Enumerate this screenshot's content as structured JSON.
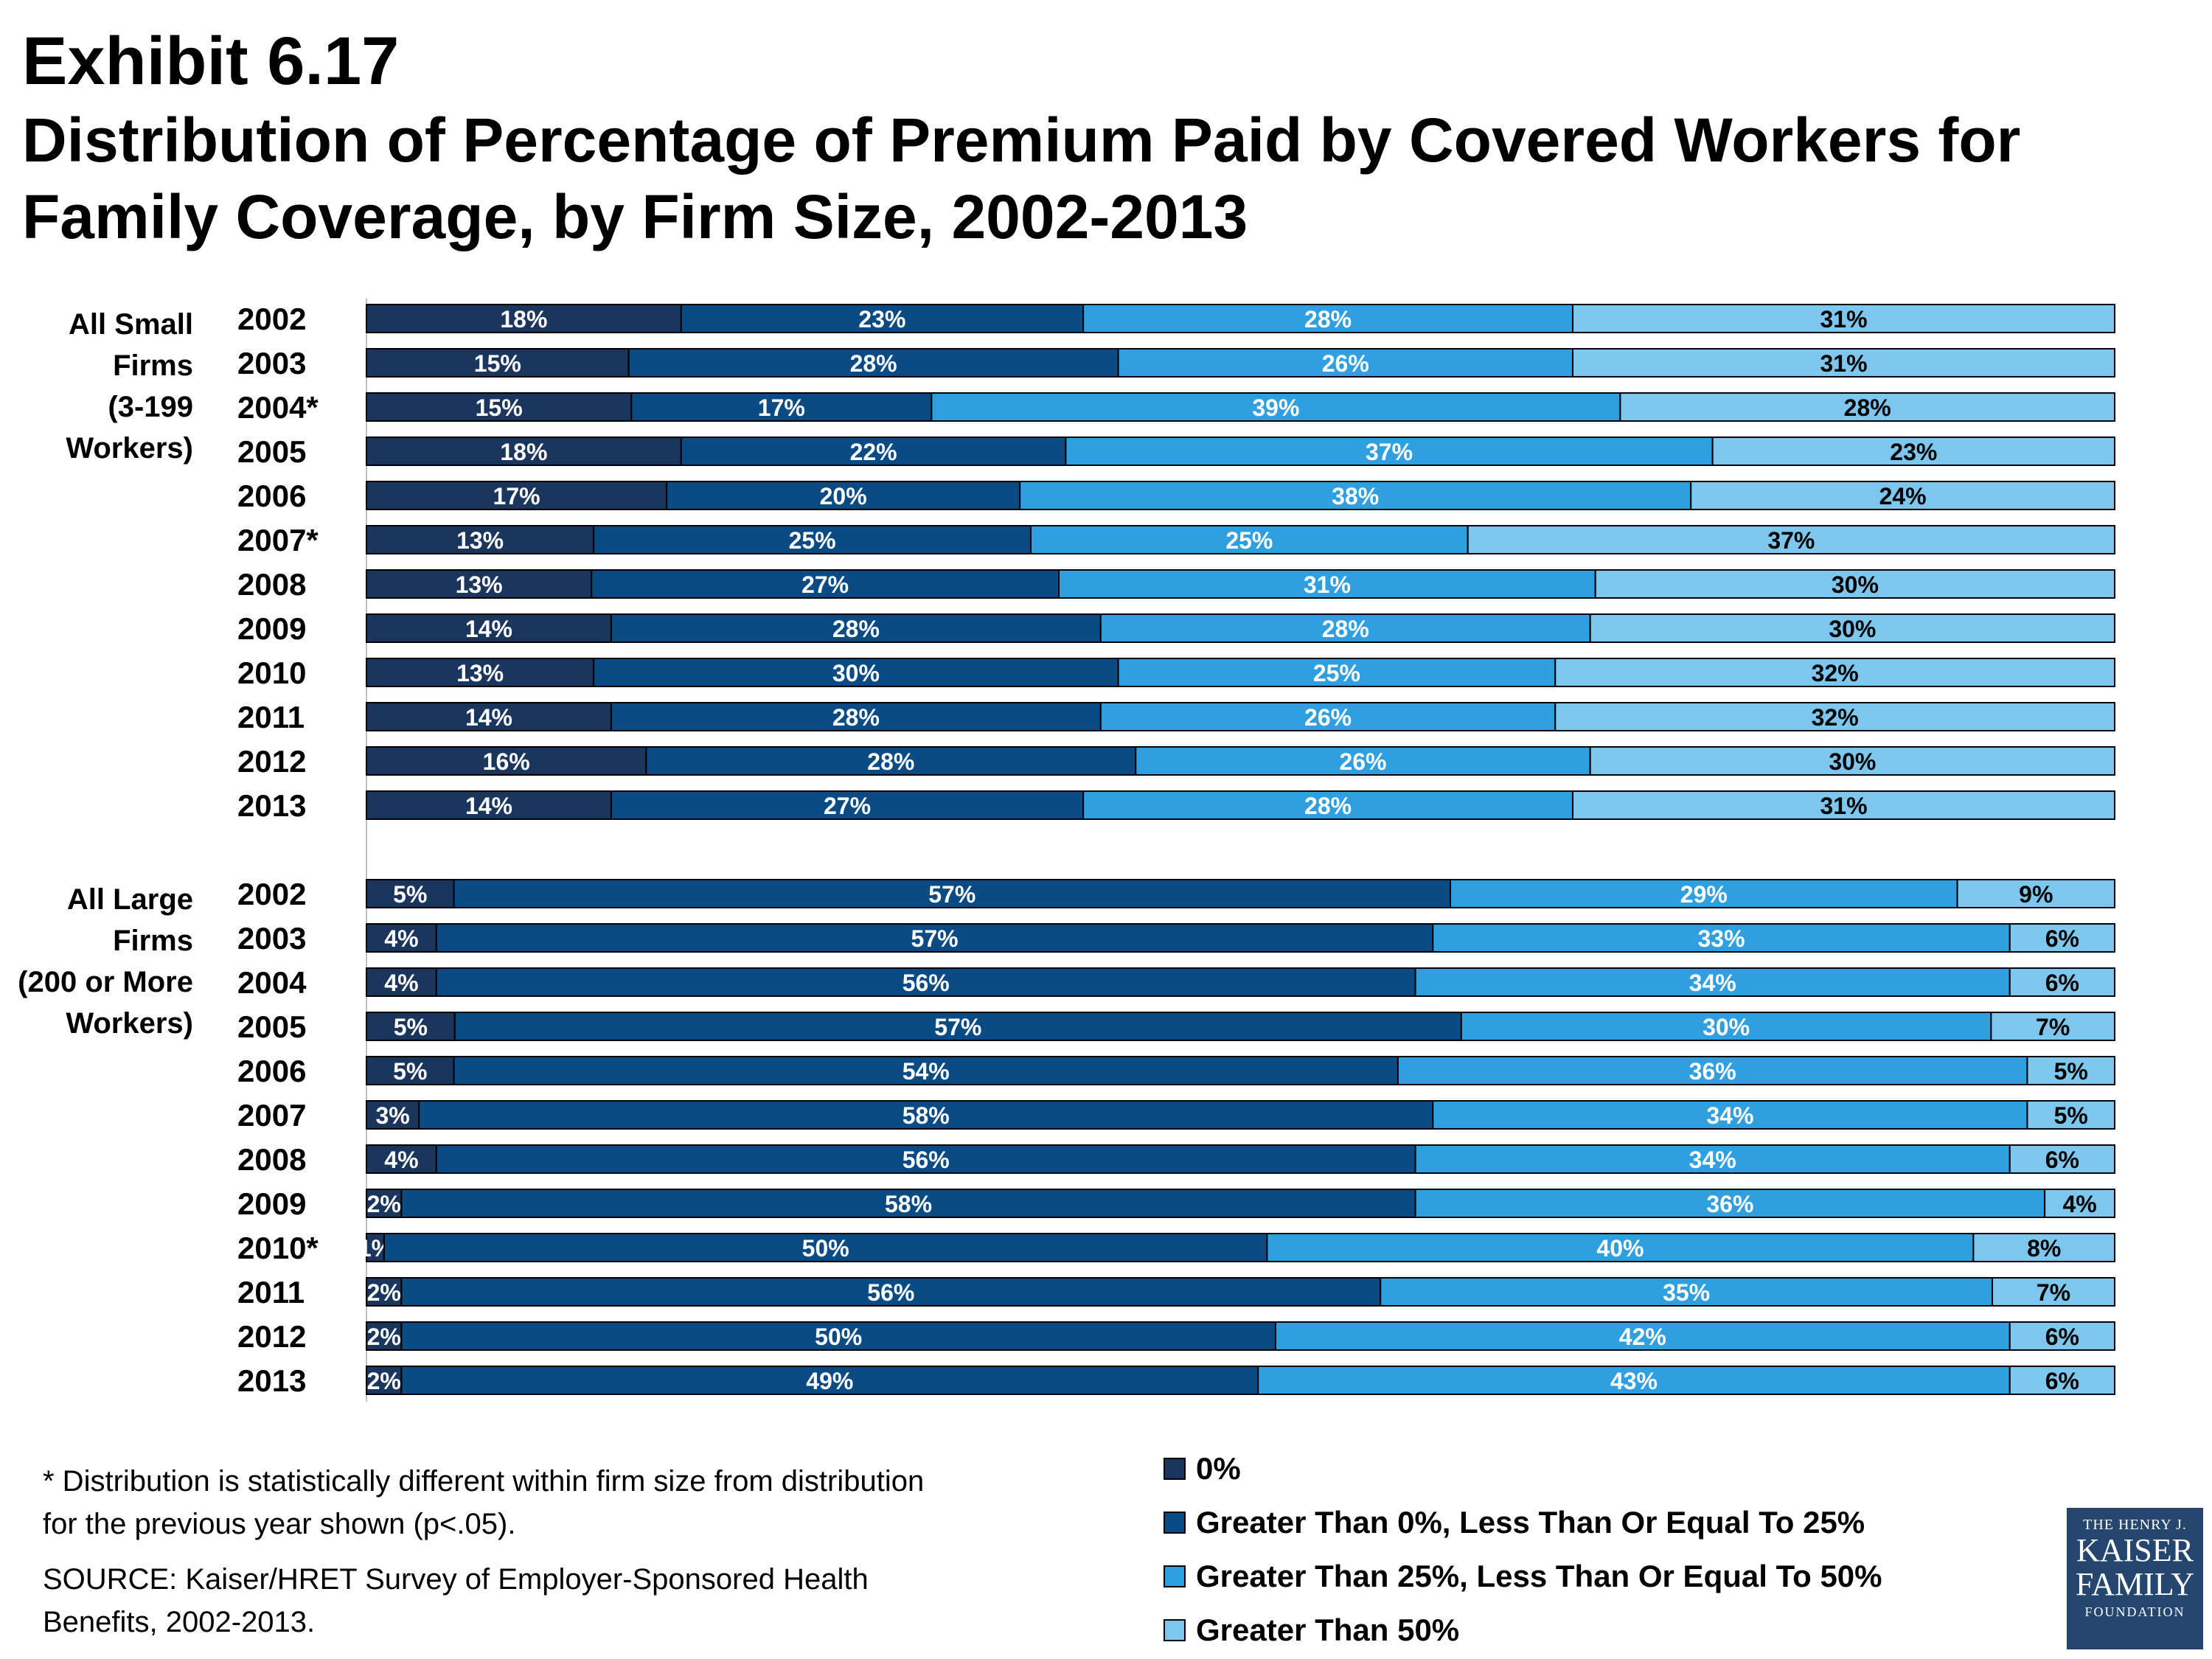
{
  "title": {
    "line1": "Exhibit 6.17",
    "line2": "Distribution of Percentage of Premium Paid by Covered Workers for",
    "line3": "Family Coverage, by Firm Size, 2002-2013"
  },
  "chart_data": {
    "type": "bar",
    "orientation": "horizontal",
    "stacked": true,
    "percent": true,
    "xlim": [
      0,
      100
    ],
    "legend_position": "bottom-right",
    "series": [
      {
        "name": "0%",
        "color": "#1b365d"
      },
      {
        "name": "Greater Than 0%, Less Than Or Equal To 25%",
        "color": "#0b4b84"
      },
      {
        "name": "Greater Than 25%, Less Than Or Equal To 50%",
        "color": "#2f9fdf"
      },
      {
        "name": "Greater Than 50%",
        "color": "#7dc7ee"
      }
    ],
    "groups": [
      {
        "label_lines": [
          "All Small",
          "Firms",
          "(3-199",
          "Workers)"
        ],
        "rows": [
          {
            "year": "2002",
            "values": [
              18,
              23,
              28,
              31
            ]
          },
          {
            "year": "2003",
            "values": [
              15,
              28,
              26,
              31
            ]
          },
          {
            "year": "2004*",
            "values": [
              15,
              17,
              39,
              28
            ]
          },
          {
            "year": "2005",
            "values": [
              18,
              22,
              37,
              23
            ]
          },
          {
            "year": "2006",
            "values": [
              17,
              20,
              38,
              24
            ]
          },
          {
            "year": "2007*",
            "values": [
              13,
              25,
              25,
              37
            ]
          },
          {
            "year": "2008",
            "values": [
              13,
              27,
              31,
              30
            ]
          },
          {
            "year": "2009",
            "values": [
              14,
              28,
              28,
              30
            ]
          },
          {
            "year": "2010",
            "values": [
              13,
              30,
              25,
              32
            ]
          },
          {
            "year": "2011",
            "values": [
              14,
              28,
              26,
              32
            ]
          },
          {
            "year": "2012",
            "values": [
              16,
              28,
              26,
              30
            ]
          },
          {
            "year": "2013",
            "values": [
              14,
              27,
              28,
              31
            ]
          }
        ]
      },
      {
        "label_lines": [
          "All Large",
          "Firms",
          "(200 or More",
          "Workers)"
        ],
        "rows": [
          {
            "year": "2002",
            "values": [
              5,
              57,
              29,
              9
            ]
          },
          {
            "year": "2003",
            "values": [
              4,
              57,
              33,
              6
            ]
          },
          {
            "year": "2004",
            "values": [
              4,
              56,
              34,
              6
            ]
          },
          {
            "year": "2005",
            "values": [
              5,
              57,
              30,
              7
            ]
          },
          {
            "year": "2006",
            "values": [
              5,
              54,
              36,
              5
            ]
          },
          {
            "year": "2007",
            "values": [
              3,
              58,
              34,
              5
            ]
          },
          {
            "year": "2008",
            "values": [
              4,
              56,
              34,
              6
            ]
          },
          {
            "year": "2009",
            "values": [
              2,
              58,
              36,
              4
            ]
          },
          {
            "year": "2010*",
            "values": [
              1,
              50,
              40,
              8
            ]
          },
          {
            "year": "2011",
            "values": [
              2,
              56,
              35,
              7
            ]
          },
          {
            "year": "2012",
            "values": [
              2,
              50,
              42,
              6
            ]
          },
          {
            "year": "2013",
            "values": [
              2,
              49,
              43,
              6
            ]
          }
        ]
      }
    ]
  },
  "footnote": "* Distribution is statistically different within firm size from distribution for the previous year shown (p<.05).",
  "source": "SOURCE:  Kaiser/HRET Survey of Employer-Sponsored Health Benefits, 2002-2013.",
  "logo": {
    "top": "THE HENRY J.",
    "line1": "KAISER",
    "line2": "FAMILY",
    "bottom": "FOUNDATION"
  }
}
